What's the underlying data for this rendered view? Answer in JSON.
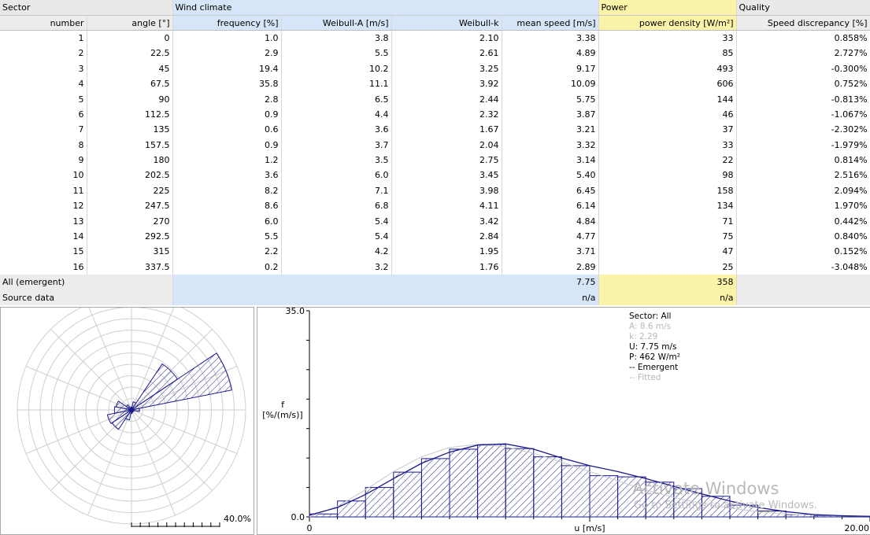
{
  "table": {
    "groups": {
      "sector": "Sector",
      "wind": "Wind climate",
      "power": "Power",
      "quality": "Quality"
    },
    "columns": [
      "number",
      "angle [°]",
      "frequency [%]",
      "Weibull-A [m/s]",
      "Weibull-k",
      "mean speed [m/s]",
      "power density [W/m²]",
      "Speed discrepancy [%]"
    ],
    "rows": [
      [
        "1",
        "0",
        "1.0",
        "3.8",
        "2.10",
        "3.38",
        "33",
        "0.858%"
      ],
      [
        "2",
        "22.5",
        "2.9",
        "5.5",
        "2.61",
        "4.89",
        "85",
        "2.727%"
      ],
      [
        "3",
        "45",
        "19.4",
        "10.2",
        "3.25",
        "9.17",
        "493",
        "-0.300%"
      ],
      [
        "4",
        "67.5",
        "35.8",
        "11.1",
        "3.92",
        "10.09",
        "606",
        "0.752%"
      ],
      [
        "5",
        "90",
        "2.8",
        "6.5",
        "2.44",
        "5.75",
        "144",
        "-0.813%"
      ],
      [
        "6",
        "112.5",
        "0.9",
        "4.4",
        "2.32",
        "3.87",
        "46",
        "-1.067%"
      ],
      [
        "7",
        "135",
        "0.6",
        "3.6",
        "1.67",
        "3.21",
        "37",
        "-2.302%"
      ],
      [
        "8",
        "157.5",
        "0.9",
        "3.7",
        "2.04",
        "3.32",
        "33",
        "-1.979%"
      ],
      [
        "9",
        "180",
        "1.2",
        "3.5",
        "2.75",
        "3.14",
        "22",
        "0.814%"
      ],
      [
        "10",
        "202.5",
        "3.6",
        "6.0",
        "3.45",
        "5.40",
        "98",
        "2.516%"
      ],
      [
        "11",
        "225",
        "8.2",
        "7.1",
        "3.98",
        "6.45",
        "158",
        "2.094%"
      ],
      [
        "12",
        "247.5",
        "8.6",
        "6.8",
        "4.11",
        "6.14",
        "134",
        "1.970%"
      ],
      [
        "13",
        "270",
        "6.0",
        "5.4",
        "3.42",
        "4.84",
        "71",
        "0.442%"
      ],
      [
        "14",
        "292.5",
        "5.5",
        "5.4",
        "2.84",
        "4.77",
        "75",
        "0.840%"
      ],
      [
        "15",
        "315",
        "2.2",
        "4.2",
        "1.95",
        "3.71",
        "47",
        "0.152%"
      ],
      [
        "16",
        "337.5",
        "0.2",
        "3.2",
        "1.76",
        "2.89",
        "25",
        "-3.048%"
      ]
    ],
    "summary": [
      {
        "label": "All (emergent)",
        "mean_speed": "7.75",
        "power_density": "358"
      },
      {
        "label": "Source data",
        "mean_speed": "n/a",
        "power_density": "n/a"
      }
    ]
  },
  "rose": {
    "scale_label": "40.0%",
    "max_percent": 40.0
  },
  "chart_data": {
    "type": "bar",
    "xlabel": "u [m/s]",
    "ylabel": "f\n[%/(m/s)]",
    "x_tick_labels": [
      "0",
      "20.00"
    ],
    "y_tick_labels": [
      "0.0",
      "35.0"
    ],
    "xlim": [
      0,
      20
    ],
    "ylim": [
      0,
      35
    ],
    "bin_width": 1,
    "values": [
      0.5,
      2.7,
      5.0,
      7.6,
      9.9,
      11.5,
      12.3,
      11.6,
      10.2,
      8.7,
      7.0,
      6.8,
      5.9,
      4.8,
      3.5,
      2.0,
      1.0,
      0.4,
      0.2,
      0.1
    ],
    "emergent_curve": [
      0.3,
      1.6,
      3.8,
      6.5,
      9.1,
      11.0,
      12.2,
      12.4,
      11.5,
      10.0,
      8.7,
      7.7,
      6.5,
      5.2,
      3.9,
      2.7,
      1.6,
      0.9,
      0.4,
      0.2,
      0.1
    ],
    "fitted_curve": [
      0.0,
      1.8,
      4.6,
      7.7,
      10.2,
      11.8,
      12.3,
      11.9,
      10.8,
      9.3,
      7.7,
      6.1,
      4.6,
      3.3,
      2.3,
      1.5,
      0.9,
      0.5,
      0.3,
      0.15,
      0.08
    ],
    "info": {
      "sector": "Sector: All",
      "A": "A: 8.6 m/s",
      "k": "k: 2.29",
      "U": "U: 7.75 m/s",
      "P": "P: 462 W/m²",
      "emergent": "-- Emergent",
      "fitted": "-- Fitted"
    }
  },
  "watermark": {
    "title": "Activate Windows",
    "subtitle": "Go to Settings to activate Windows."
  },
  "colors": {
    "series": "#1a1a8c",
    "wind_bg": "#d6e6f8",
    "power_bg": "#fbf3a8",
    "header_bg": "#ececec"
  }
}
